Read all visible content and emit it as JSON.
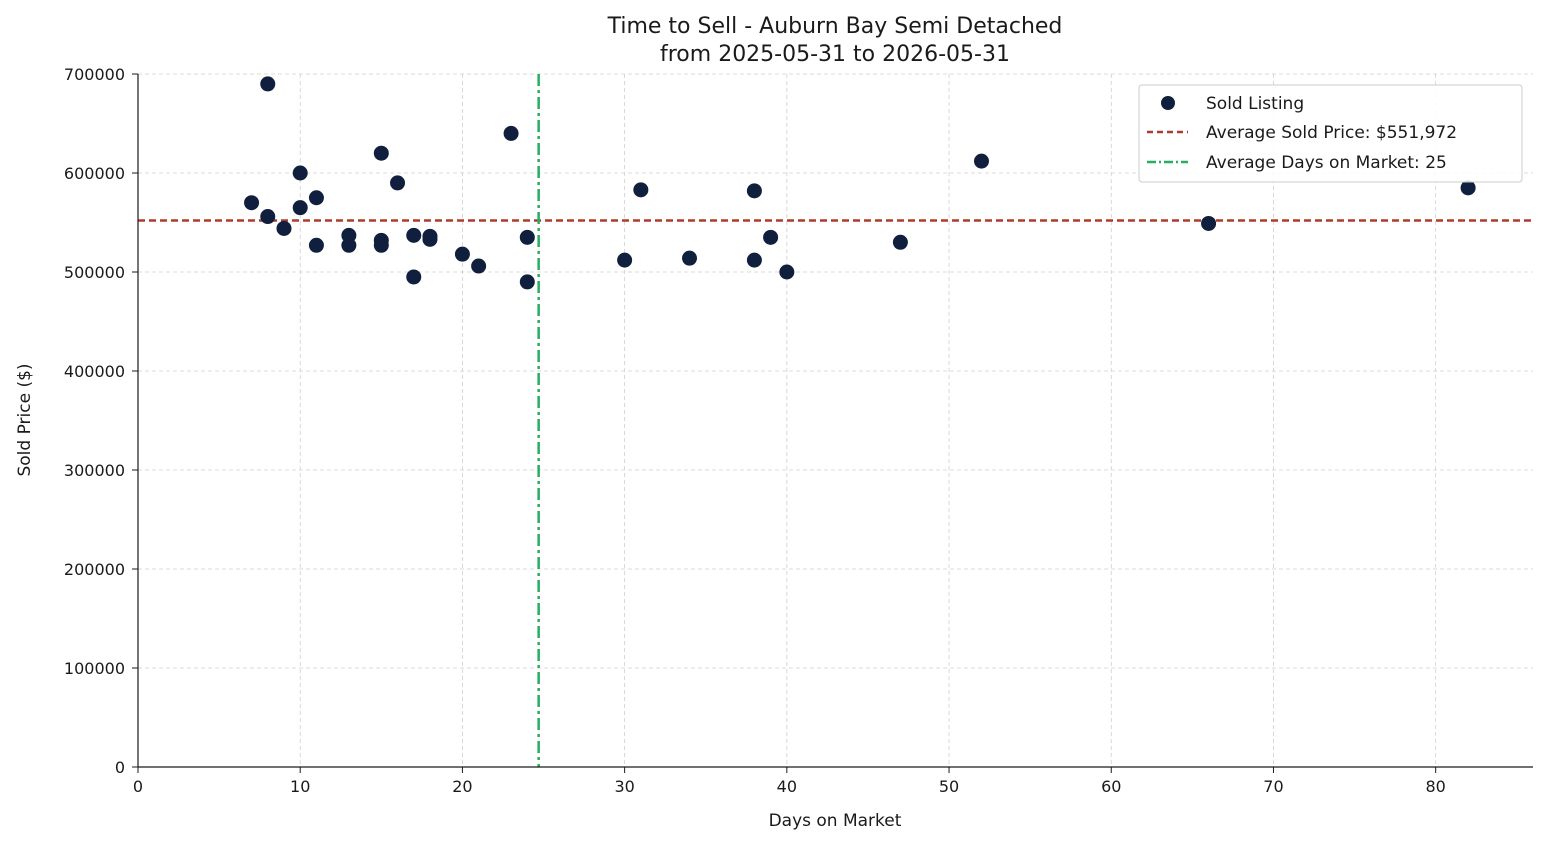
{
  "chart_data": {
    "type": "scatter",
    "title": "Time to Sell - Auburn Bay Semi Detached",
    "subtitle": "from 2025-05-31 to 2026-05-31",
    "xlabel": "Days on Market",
    "ylabel": "Sold Price ($)",
    "xlim": [
      0,
      86
    ],
    "ylim": [
      0,
      700000
    ],
    "x_ticks": [
      0,
      10,
      20,
      30,
      40,
      50,
      60,
      70,
      80
    ],
    "y_ticks": [
      0,
      100000,
      200000,
      300000,
      400000,
      500000,
      600000,
      700000
    ],
    "x_tick_labels": [
      "0",
      "10",
      "20",
      "30",
      "40",
      "50",
      "60",
      "70",
      "80"
    ],
    "y_tick_labels": [
      "0",
      "100000",
      "200000",
      "300000",
      "400000",
      "500000",
      "600000",
      "700000"
    ],
    "grid": true,
    "legend_position": "top-right",
    "series": [
      {
        "name": "Sold Listing",
        "color": "#0f1f3d",
        "points": [
          {
            "x": 7,
            "y": 570000
          },
          {
            "x": 8,
            "y": 690000
          },
          {
            "x": 8,
            "y": 556000
          },
          {
            "x": 9,
            "y": 544000
          },
          {
            "x": 10,
            "y": 600000
          },
          {
            "x": 10,
            "y": 565000
          },
          {
            "x": 11,
            "y": 575000
          },
          {
            "x": 11,
            "y": 527000
          },
          {
            "x": 13,
            "y": 537000
          },
          {
            "x": 13,
            "y": 527000
          },
          {
            "x": 15,
            "y": 620000
          },
          {
            "x": 15,
            "y": 532000
          },
          {
            "x": 15,
            "y": 527000
          },
          {
            "x": 16,
            "y": 590000
          },
          {
            "x": 17,
            "y": 537000
          },
          {
            "x": 17,
            "y": 495000
          },
          {
            "x": 18,
            "y": 536000
          },
          {
            "x": 18,
            "y": 533000
          },
          {
            "x": 20,
            "y": 518000
          },
          {
            "x": 21,
            "y": 506000
          },
          {
            "x": 23,
            "y": 640000
          },
          {
            "x": 24,
            "y": 535000
          },
          {
            "x": 24,
            "y": 490000
          },
          {
            "x": 30,
            "y": 512000
          },
          {
            "x": 31,
            "y": 583000
          },
          {
            "x": 34,
            "y": 514000
          },
          {
            "x": 38,
            "y": 582000
          },
          {
            "x": 38,
            "y": 512000
          },
          {
            "x": 39,
            "y": 535000
          },
          {
            "x": 40,
            "y": 500000
          },
          {
            "x": 47,
            "y": 530000
          },
          {
            "x": 52,
            "y": 612000
          },
          {
            "x": 66,
            "y": 549000
          },
          {
            "x": 82,
            "y": 585000
          }
        ]
      }
    ],
    "reference_lines": [
      {
        "name": "Average Sold Price: $551,972",
        "orientation": "horizontal",
        "value": 551972,
        "color": "#b03a2e",
        "style": "dashed"
      },
      {
        "name": "Average Days on Market: 25",
        "orientation": "vertical",
        "value": 24.7,
        "color": "#27ae60",
        "style": "dashdot"
      }
    ]
  }
}
